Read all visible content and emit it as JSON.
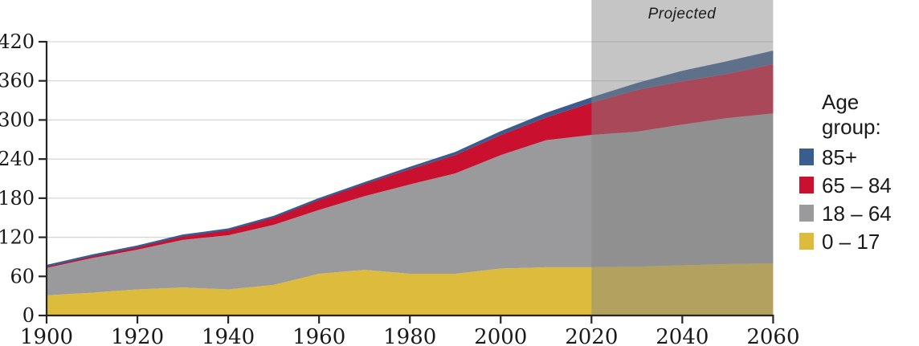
{
  "chart": {
    "projected_label": "Projected",
    "legend": {
      "title": "Age group:",
      "entries": [
        {
          "label": "85+",
          "color": "#3A5C8F"
        },
        {
          "label": "65 – 84",
          "color": "#C9102E"
        },
        {
          "label": "18 – 64",
          "color": "#9A9A9C"
        },
        {
          "label": "0 – 17",
          "color": "#DDBC3D"
        }
      ]
    }
  },
  "chart_data": {
    "type": "area",
    "stacked": true,
    "x": [
      1900,
      1910,
      1920,
      1930,
      1940,
      1950,
      1960,
      1970,
      1980,
      1990,
      2000,
      2010,
      2020,
      2030,
      2040,
      2050,
      2060
    ],
    "x_tick_step": 20,
    "x_tick_labels": [
      "1900",
      "1920",
      "1940",
      "1960",
      "1980",
      "2000",
      "2020",
      "2040",
      "2060"
    ],
    "series": [
      {
        "name": "0 – 17",
        "color": "#DDBC3D",
        "values": [
          31,
          35,
          40,
          43,
          40,
          47,
          64,
          70,
          64,
          64,
          72,
          74,
          74,
          75,
          77,
          79,
          80
        ]
      },
      {
        "name": "18 – 64",
        "color": "#9A9A9C",
        "values": [
          42,
          53,
          61,
          73,
          83,
          92,
          98,
          113,
          137,
          154,
          174,
          195,
          203,
          207,
          216,
          224,
          230
        ]
      },
      {
        "name": "65 – 84",
        "color": "#C9102E",
        "values": [
          3,
          3.8,
          4.7,
          6.3,
          8.6,
          11.7,
          15.7,
          18.6,
          23.3,
          28.2,
          30.8,
          34.8,
          49.4,
          64,
          66.4,
          67.7,
          75.7
        ]
      },
      {
        "name": "85+",
        "color": "#3A5C8F",
        "values": [
          0.1,
          0.2,
          0.2,
          0.3,
          0.4,
          0.6,
          0.9,
          1.4,
          2.2,
          3,
          4.2,
          5.5,
          6.7,
          9.1,
          14.4,
          18,
          19
        ]
      }
    ],
    "ylim": [
      0,
      420
    ],
    "y_ticks": [
      0,
      60,
      120,
      180,
      240,
      300,
      360,
      420
    ],
    "grid": "horizontal",
    "legend_position": "right",
    "projected_region": {
      "start": 2020,
      "end": 2060,
      "label": "Projected",
      "overlay_color": "#868686",
      "overlay_opacity": 0.48
    },
    "colors": {
      "axis": "#262626",
      "text": "#1a1a1a",
      "gridline": "#d6d6d6",
      "background": "#ffffff"
    }
  }
}
